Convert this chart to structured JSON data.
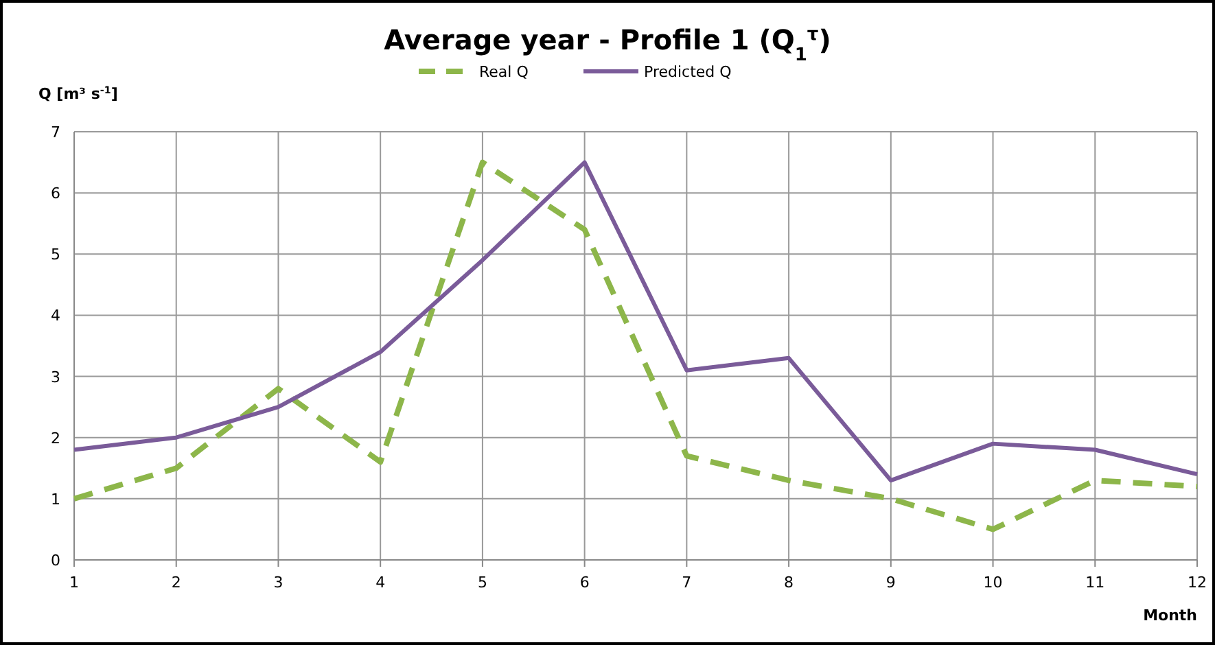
{
  "chart_data": {
    "type": "line",
    "title": "Average year - Profile 1 (Q$_{1}$$^{τ}$)",
    "ylabel": "Q [m³ s$^{-1}$]",
    "xlabel": "Month",
    "x": [
      1,
      2,
      3,
      4,
      5,
      6,
      7,
      8,
      9,
      10,
      11,
      12
    ],
    "series": [
      {
        "name": "Real Q",
        "color": "#8db64a",
        "line_style": "dashed",
        "values": [
          1.0,
          1.5,
          2.8,
          1.6,
          6.5,
          5.4,
          1.7,
          1.3,
          1.0,
          0.5,
          1.3,
          1.2
        ]
      },
      {
        "name": "Predicted Q",
        "color": "#7a5b99",
        "line_style": "solid",
        "values": [
          1.8,
          2.0,
          2.5,
          3.4,
          4.9,
          6.5,
          3.1,
          3.3,
          1.3,
          1.9,
          1.8,
          1.4
        ]
      }
    ],
    "xlim": [
      1,
      12
    ],
    "xticks": [
      1,
      2,
      3,
      4,
      5,
      6,
      7,
      8,
      9,
      10,
      11,
      12
    ],
    "ylim": [
      0,
      7
    ],
    "yticks": [
      0,
      1,
      2,
      3,
      4,
      5,
      6,
      7
    ],
    "grid": true,
    "legend": "top",
    "marker": "none"
  }
}
